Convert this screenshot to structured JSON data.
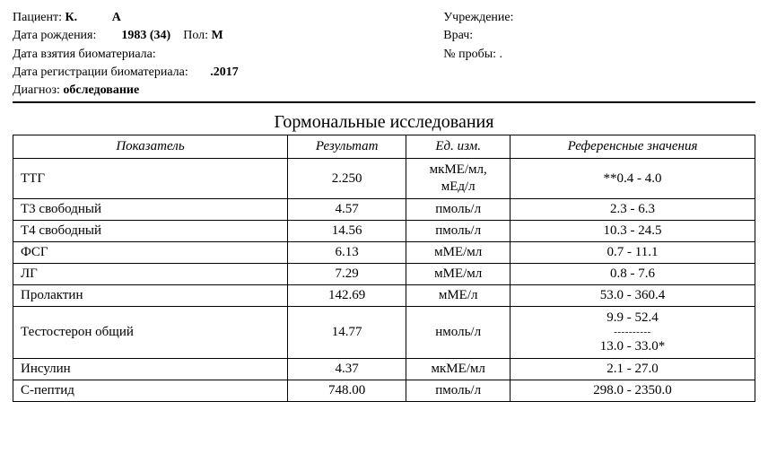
{
  "header": {
    "left": {
      "patient_label": "Пациент: ",
      "patient_value_bold1": "К.",
      "patient_value_bold2": "А",
      "dob_label": "Дата рождения:",
      "dob_value": "1983 (34)",
      "sex_label": "Пол: ",
      "sex_value": "М",
      "sample_date_label": "Дата взятия биоматериала: ",
      "sample_date_value": " ",
      "reg_date_label": "Дата регистрации биоматериала:",
      "reg_date_value": ".2017",
      "diagnosis_label": "Диагноз: ",
      "diagnosis_value": "обследование"
    },
    "right": {
      "institution_label": "Учреждение:",
      "doctor_label": "Врач:",
      "sample_no_label": "№ пробы: ."
    }
  },
  "section_title": "Гормональные исследования",
  "table": {
    "columns": {
      "name": "Показатель",
      "result": "Результат",
      "unit": "Ед. изм.",
      "reference": "Референсные значения"
    },
    "rows": [
      {
        "name": "ТТГ",
        "result": "2.250",
        "unit_line1": "мкМЕ/мл,",
        "unit_line2": "мЕд/л",
        "ref": "**0.4 - 4.0",
        "multi_unit": true
      },
      {
        "name": "Т3 свободный",
        "result": "4.57",
        "unit": "пмоль/л",
        "ref": "2.3 - 6.3"
      },
      {
        "name": "Т4 свободный",
        "result": "14.56",
        "unit": "пмоль/л",
        "ref": "10.3 - 24.5"
      },
      {
        "name": "ФСГ",
        "result": "6.13",
        "unit": "мМЕ/мл",
        "ref": "0.7 - 11.1"
      },
      {
        "name": "ЛГ",
        "result": "7.29",
        "unit": "мМЕ/мл",
        "ref": "0.8 - 7.6"
      },
      {
        "name": "Пролактин",
        "result": "142.69",
        "unit": "мМЕ/л",
        "ref": "53.0 - 360.4"
      },
      {
        "name": "Тестостерон общий",
        "result": "14.77",
        "unit": "нмоль/л",
        "ref_line1": "9.9 - 52.4",
        "ref_dashes": "----------",
        "ref_line2": "13.0 - 33.0*",
        "multi_ref": true
      },
      {
        "name": "Инсулин",
        "result": "4.37",
        "unit": "мкМЕ/мл",
        "ref": "2.1 - 27.0"
      },
      {
        "name": "С-пептид",
        "result": "748.00",
        "unit": "пмоль/л",
        "ref": "298.0 - 2350.0"
      }
    ]
  }
}
